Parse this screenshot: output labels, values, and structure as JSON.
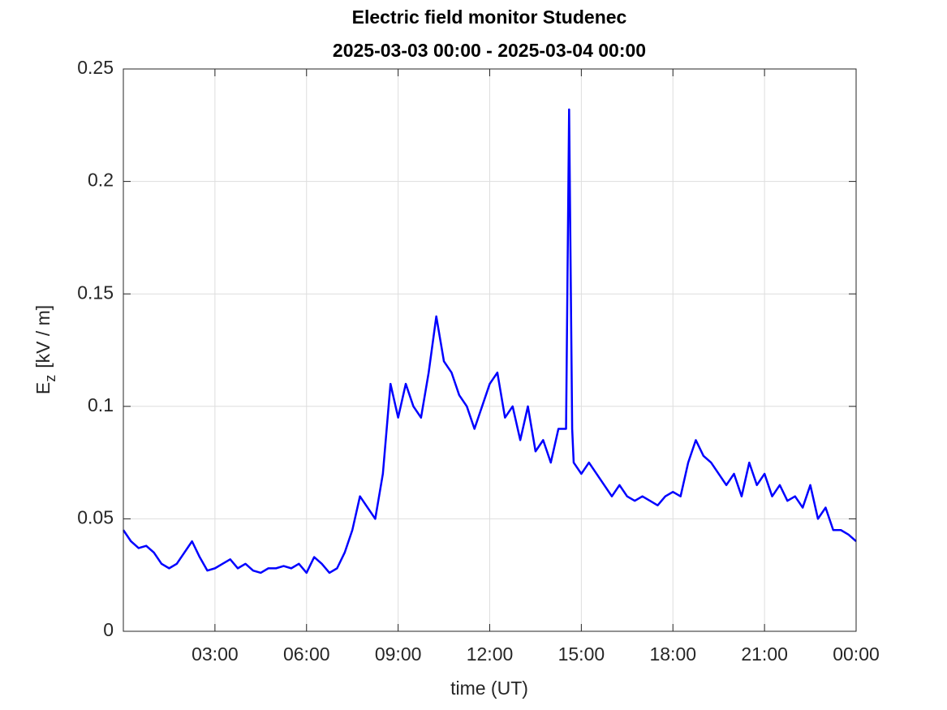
{
  "chart_data": {
    "type": "line",
    "title": "Electric field monitor Studenec",
    "subtitle": "2025-03-03 00:00 - 2025-03-04 00:00",
    "xlabel": "time (UT)",
    "ylabel": {
      "main": "E",
      "sub": "z",
      "rest": "[kV / m]"
    },
    "xlim": [
      0,
      24
    ],
    "ylim": [
      0,
      0.25
    ],
    "xticks": [
      {
        "value": 3,
        "label": "03:00"
      },
      {
        "value": 6,
        "label": "06:00"
      },
      {
        "value": 9,
        "label": "09:00"
      },
      {
        "value": 12,
        "label": "12:00"
      },
      {
        "value": 15,
        "label": "15:00"
      },
      {
        "value": 18,
        "label": "18:00"
      },
      {
        "value": 21,
        "label": "21:00"
      },
      {
        "value": 24,
        "label": "00:00"
      }
    ],
    "yticks": [
      0,
      0.05,
      0.1,
      0.15,
      0.2,
      0.25
    ],
    "grid": true,
    "x": [
      0,
      0.25,
      0.5,
      0.75,
      1,
      1.25,
      1.5,
      1.75,
      2,
      2.25,
      2.5,
      2.75,
      3,
      3.25,
      3.5,
      3.75,
      4,
      4.25,
      4.5,
      4.75,
      5,
      5.25,
      5.5,
      5.75,
      6,
      6.25,
      6.5,
      6.75,
      7,
      7.25,
      7.5,
      7.75,
      8,
      8.25,
      8.5,
      8.75,
      9,
      9.25,
      9.5,
      9.75,
      10,
      10.25,
      10.5,
      10.75,
      11,
      11.25,
      11.5,
      11.75,
      12,
      12.25,
      12.5,
      12.75,
      13,
      13.25,
      13.5,
      13.75,
      14,
      14.25,
      14.5,
      14.6,
      14.7,
      14.75,
      15,
      15.25,
      15.5,
      15.75,
      16,
      16.25,
      16.5,
      16.75,
      17,
      17.25,
      17.5,
      17.75,
      18,
      18.25,
      18.5,
      18.75,
      19,
      19.25,
      19.5,
      19.75,
      20,
      20.25,
      20.5,
      20.75,
      21,
      21.25,
      21.5,
      21.75,
      22,
      22.25,
      22.5,
      22.75,
      23,
      23.25,
      23.5,
      23.75,
      24
    ],
    "series": [
      {
        "color": "#0000ff",
        "values": [
          0.045,
          0.04,
          0.037,
          0.038,
          0.035,
          0.03,
          0.028,
          0.03,
          0.035,
          0.04,
          0.033,
          0.027,
          0.028,
          0.03,
          0.032,
          0.028,
          0.03,
          0.027,
          0.026,
          0.028,
          0.028,
          0.029,
          0.028,
          0.03,
          0.026,
          0.033,
          0.03,
          0.026,
          0.028,
          0.035,
          0.045,
          0.06,
          0.055,
          0.05,
          0.07,
          0.11,
          0.095,
          0.11,
          0.1,
          0.095,
          0.115,
          0.14,
          0.12,
          0.115,
          0.105,
          0.1,
          0.09,
          0.1,
          0.11,
          0.115,
          0.095,
          0.1,
          0.085,
          0.1,
          0.08,
          0.085,
          0.075,
          0.09,
          0.09,
          0.232,
          0.09,
          0.075,
          0.07,
          0.075,
          0.07,
          0.065,
          0.06,
          0.065,
          0.06,
          0.058,
          0.06,
          0.058,
          0.056,
          0.06,
          0.062,
          0.06,
          0.075,
          0.085,
          0.078,
          0.075,
          0.07,
          0.065,
          0.07,
          0.06,
          0.075,
          0.065,
          0.07,
          0.06,
          0.065,
          0.058,
          0.06,
          0.055,
          0.065,
          0.05,
          0.055,
          0.045,
          0.045,
          0.043,
          0.04
        ]
      }
    ]
  }
}
